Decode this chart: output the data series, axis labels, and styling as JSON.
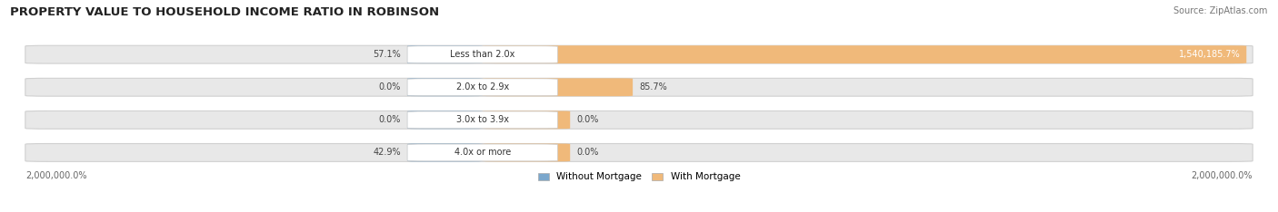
{
  "title": "PROPERTY VALUE TO HOUSEHOLD INCOME RATIO IN ROBINSON",
  "source": "Source: ZipAtlas.com",
  "categories": [
    "Less than 2.0x",
    "2.0x to 2.9x",
    "3.0x to 3.9x",
    "4.0x or more"
  ],
  "without_mortgage_labels": [
    "57.1%",
    "0.0%",
    "0.0%",
    "42.9%"
  ],
  "with_mortgage_labels": [
    "1,540,185.7%",
    "85.7%",
    "0.0%",
    "0.0%"
  ],
  "color_without": "#7ba7cc",
  "color_with": "#f0b97a",
  "bg_bar": "#e8e8e8",
  "bg_bar_edge": "#d0d0d0",
  "label_bg": "#f5f5f5",
  "axis_label_left": "2,000,000.0%",
  "axis_label_right": "2,000,000.0%",
  "legend_without": "Without Mortgage",
  "legend_with": "With Mortgage",
  "title_fontsize": 9.5,
  "source_fontsize": 7,
  "fig_width": 14.06,
  "fig_height": 2.34
}
